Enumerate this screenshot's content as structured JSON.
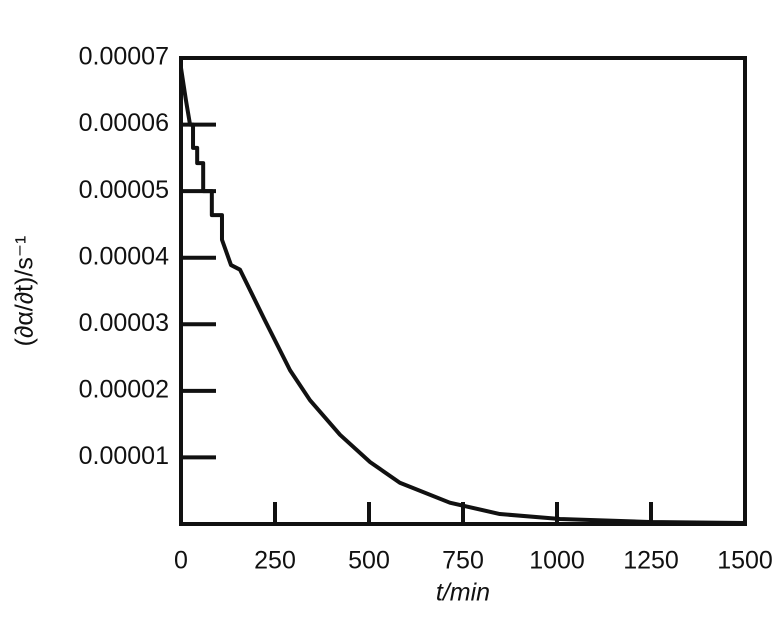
{
  "chart_data": {
    "type": "line",
    "x_label": "t/min",
    "y_label": "(∂α/∂t)/s⁻¹",
    "x": [
      0,
      13,
      24,
      32,
      32,
      43,
      43,
      59,
      59,
      82,
      82,
      109,
      109,
      133,
      157,
      223,
      290,
      343,
      423,
      503,
      582,
      715,
      848,
      1008,
      1247,
      1500
    ],
    "series": [
      {
        "color": "#111111",
        "values": [
          6.85e-05,
          6.37e-05,
          6e-05,
          6e-05,
          5.65e-05,
          5.65e-05,
          5.42e-05,
          5.42e-05,
          5e-05,
          5e-05,
          4.64e-05,
          4.64e-05,
          4.27e-05,
          3.89e-05,
          3.82e-05,
          3.06e-05,
          2.31e-05,
          1.86e-05,
          1.34e-05,
          9.3e-06,
          6.2e-06,
          3.2e-06,
          1.5e-06,
          7.5e-07,
          3e-07,
          1.5e-07
        ]
      }
    ],
    "xlim": [
      0,
      1500
    ],
    "ylim": [
      0,
      7e-05
    ],
    "xticks": [
      0,
      250,
      500,
      750,
      1000,
      1250,
      1500
    ],
    "yticks": [
      1e-05,
      2e-05,
      3e-05,
      4e-05,
      5e-05,
      6e-05,
      7e-05
    ]
  }
}
